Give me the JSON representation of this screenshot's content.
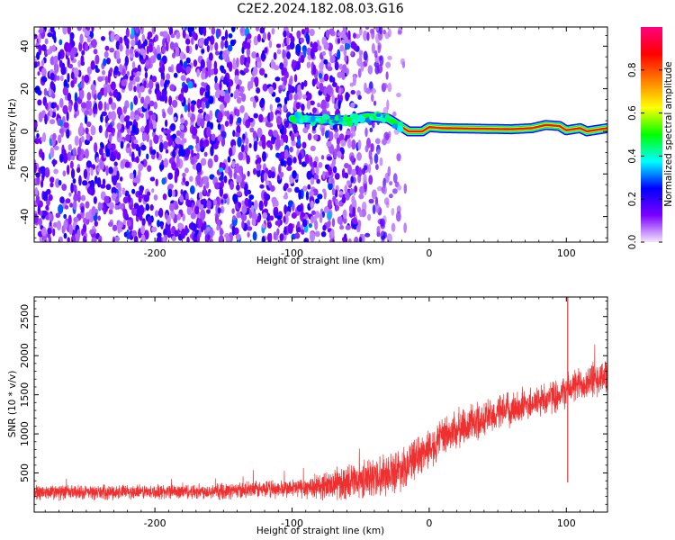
{
  "figure": {
    "title": "C2E2.2024.182.08.03.G16"
  },
  "chart_data": [
    {
      "type": "heatmap",
      "xlabel": "Height of straight line (km)",
      "ylabel": "Frequency (Hz)",
      "xlim": [
        -288,
        130
      ],
      "ylim": [
        -52,
        49
      ],
      "xticks": [
        -200,
        -100,
        0,
        100
      ],
      "yticks": [
        -40,
        -20,
        0,
        20,
        40
      ],
      "xtick_labels": [
        "-200",
        "-100",
        "0",
        "100"
      ],
      "ytick_labels": [
        "-40",
        "-20",
        "0",
        "20",
        "40"
      ],
      "colorbar": {
        "label": "Normalized spectral amplitude",
        "range": [
          0,
          1
        ],
        "ticks": [
          0.0,
          0.2,
          0.4,
          0.6,
          0.8
        ],
        "tick_labels": [
          "0.0",
          "0.2",
          "0.4",
          "0.6",
          "0.8"
        ],
        "colormap": "gist_rainbow_r",
        "stops": [
          "#f5e6fb",
          "#7a00ff",
          "#0000ff",
          "#00ffff",
          "#00ff00",
          "#ffff00",
          "#ff7f00",
          "#ff0000",
          "#ff0080"
        ]
      },
      "signal_trace": [
        {
          "x": -100,
          "y": 6
        },
        {
          "x": -80,
          "y": 5.5
        },
        {
          "x": -60,
          "y": 5
        },
        {
          "x": -45,
          "y": 7
        },
        {
          "x": -30,
          "y": 6
        },
        {
          "x": -20,
          "y": 2
        },
        {
          "x": -15,
          "y": 0
        },
        {
          "x": -5,
          "y": 0
        },
        {
          "x": 0,
          "y": 2
        },
        {
          "x": 10,
          "y": 1.5
        },
        {
          "x": 60,
          "y": 1
        },
        {
          "x": 75,
          "y": 1.5
        },
        {
          "x": 85,
          "y": 3
        },
        {
          "x": 95,
          "y": 2.5
        },
        {
          "x": 100,
          "y": 0.5
        },
        {
          "x": 110,
          "y": 1.5
        },
        {
          "x": 115,
          "y": 0
        },
        {
          "x": 130,
          "y": 1.5
        }
      ],
      "noise_region": {
        "x_start": -288,
        "x_end": -15,
        "density_fades_at": -60
      }
    },
    {
      "type": "line",
      "xlabel": "Height of straight line (km)",
      "ylabel": "SNR (10 * v/v)",
      "xlim": [
        -288,
        130
      ],
      "ylim": [
        0,
        2750
      ],
      "xticks": [
        -200,
        -100,
        0,
        100
      ],
      "yticks": [
        500,
        1000,
        1500,
        2000,
        2500
      ],
      "xtick_labels": [
        "-200",
        "-100",
        "0",
        "100"
      ],
      "ytick_labels": [
        "500",
        "1000",
        "1500",
        "2000",
        "2500"
      ],
      "grid": false,
      "series": [
        {
          "color": "#ee3030",
          "x": [
            -288,
            -250,
            -200,
            -150,
            -100,
            -80,
            -60,
            -40,
            -20,
            -10,
            0,
            10,
            20,
            40,
            60,
            80,
            90,
            95,
            100,
            105,
            110,
            120,
            130
          ],
          "y": [
            250,
            250,
            260,
            270,
            300,
            330,
            380,
            450,
            560,
            680,
            820,
            950,
            1050,
            1200,
            1320,
            1420,
            1480,
            1500,
            1560,
            1600,
            1640,
            1700,
            1760
          ],
          "noise_amplitude": [
            120,
            110,
            110,
            120,
            140,
            200,
            260,
            300,
            320,
            300,
            300,
            300,
            300,
            280,
            260,
            250,
            250,
            250,
            250,
            250,
            260,
            270,
            280
          ],
          "spike": {
            "x": 101,
            "max": 2750,
            "min": 380
          }
        }
      ]
    }
  ]
}
